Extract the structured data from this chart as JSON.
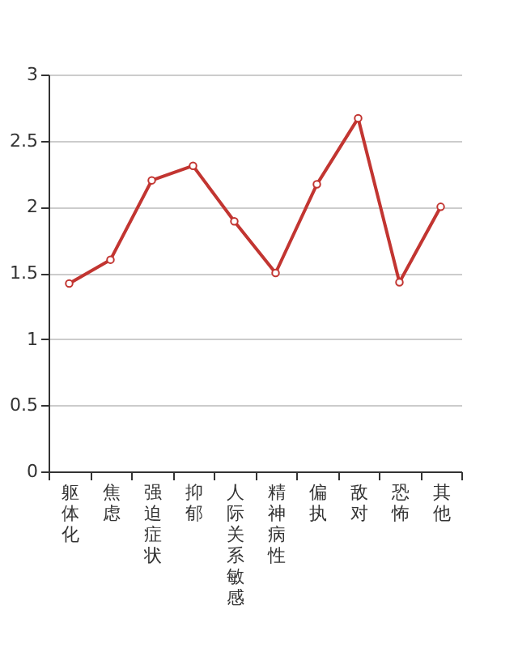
{
  "chart_data": {
    "type": "line",
    "categories": [
      "躯体化",
      "焦虑",
      "强迫症状",
      "抑郁",
      "人际关系敏感",
      "精神病性",
      "偏执",
      "敌对",
      "恐怖",
      "其他"
    ],
    "series": [
      {
        "color": "#c23531",
        "values": [
          1.42,
          1.6,
          2.2,
          2.31,
          1.89,
          1.5,
          2.17,
          2.67,
          1.43,
          2.0
        ]
      }
    ],
    "ylim": [
      0,
      3
    ],
    "yticks": [
      0,
      0.5,
      1,
      1.5,
      2,
      2.5,
      3
    ],
    "grid": "y",
    "marker": "circle",
    "line_style": "solid"
  }
}
